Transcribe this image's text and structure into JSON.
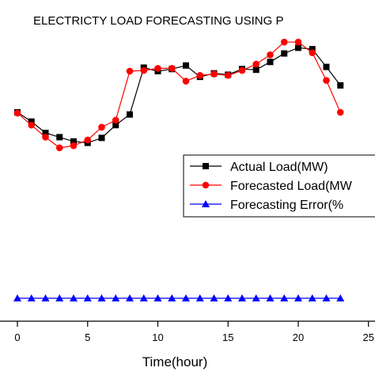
{
  "chart_data": {
    "type": "line",
    "title": "ELECTRICTY LOAD FORECASTING USING P",
    "xlabel": "Time(hour)",
    "ylabel": "",
    "xlim": [
      -1,
      25
    ],
    "ylim": [
      -30,
      380
    ],
    "x_ticks": [
      0,
      5,
      10,
      15,
      20,
      25
    ],
    "x_tick_labels": [
      "0",
      "5",
      "10",
      "15",
      "20",
      "25"
    ],
    "legend_position": "right",
    "series": [
      {
        "name": "Actual Load(MW)",
        "color": "#000000",
        "marker": "square",
        "x": [
          0,
          1,
          2,
          3,
          4,
          5,
          6,
          7,
          8,
          9,
          10,
          11,
          12,
          13,
          14,
          15,
          16,
          17,
          18,
          19,
          20,
          21,
          22,
          23
        ],
        "y": [
          262,
          249,
          233,
          227,
          221,
          219,
          226,
          244,
          259,
          325,
          320,
          323,
          328,
          312,
          317,
          315,
          323,
          322,
          333,
          345,
          353,
          351,
          326,
          300
        ]
      },
      {
        "name": "Forecasted Load(MW",
        "color": "#ff0000",
        "marker": "circle",
        "x": [
          0,
          1,
          2,
          3,
          4,
          5,
          6,
          7,
          8,
          9,
          10,
          11,
          12,
          13,
          14,
          15,
          16,
          17,
          18,
          19,
          20,
          21,
          22,
          23
        ],
        "y": [
          261,
          244,
          227,
          212,
          215,
          223,
          241,
          251,
          320,
          321,
          324,
          324,
          306,
          314,
          316,
          314,
          321,
          330,
          343,
          361,
          361,
          346,
          307,
          262
        ]
      },
      {
        "name": "Forecasting Error(%",
        "color": "#0000ff",
        "marker": "triangle",
        "x": [
          0,
          1,
          2,
          3,
          4,
          5,
          6,
          7,
          8,
          9,
          10,
          11,
          12,
          13,
          14,
          15,
          16,
          17,
          18,
          19,
          20,
          21,
          22,
          23
        ],
        "y": [
          0,
          0,
          0,
          0,
          0,
          0,
          0,
          0,
          0,
          0,
          0,
          0,
          0,
          0,
          0,
          0,
          0,
          0,
          0,
          0,
          0,
          0,
          0,
          0
        ]
      }
    ]
  }
}
